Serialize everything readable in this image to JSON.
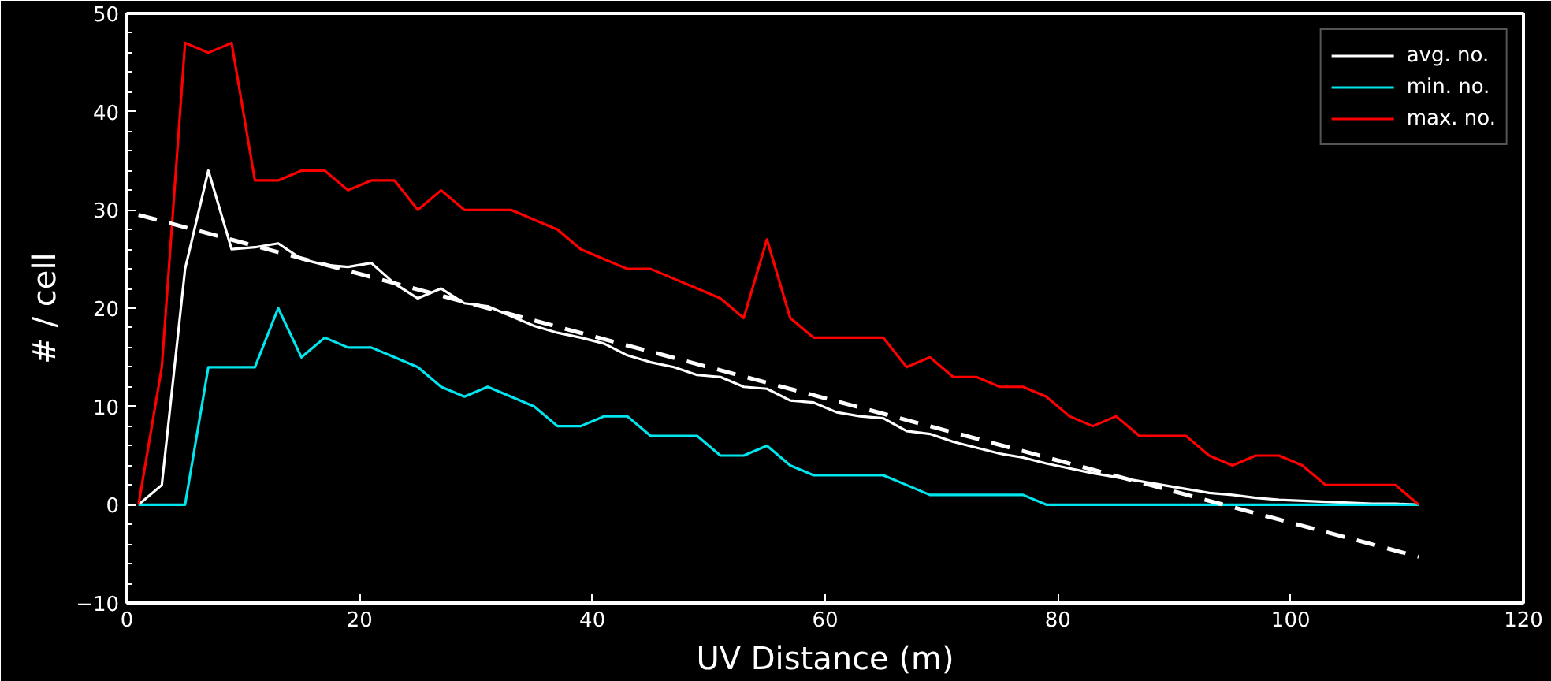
{
  "chart_data": {
    "type": "line",
    "xlabel": "UV Distance (m)",
    "ylabel": "# / cell",
    "x": [
      1,
      3,
      5,
      7,
      9,
      11,
      13,
      15,
      17,
      19,
      21,
      23,
      25,
      27,
      29,
      31,
      33,
      35,
      37,
      39,
      41,
      43,
      45,
      47,
      49,
      51,
      53,
      55,
      57,
      59,
      61,
      63,
      65,
      67,
      69,
      71,
      73,
      75,
      77,
      79,
      81,
      83,
      85,
      87,
      89,
      91,
      93,
      95,
      97,
      99,
      101,
      103,
      105,
      107,
      109,
      111
    ],
    "series": [
      {
        "name": "avg. no.",
        "color": "#ffffff",
        "values": [
          0,
          2,
          24,
          34,
          26,
          26.2,
          26.6,
          25,
          24.4,
          24.2,
          24.6,
          22.5,
          21,
          22,
          20.5,
          20.2,
          19.2,
          18.2,
          17.5,
          17,
          16.4,
          15.2,
          14.5,
          14,
          13.2,
          13,
          12,
          11.8,
          10.6,
          10.4,
          9.4,
          9,
          8.8,
          7.5,
          7.2,
          6.4,
          5.8,
          5.2,
          4.8,
          4.2,
          3.7,
          3.2,
          2.8,
          2.4,
          2.0,
          1.6,
          1.2,
          1.0,
          0.7,
          0.5,
          0.4,
          0.3,
          0.2,
          0.1,
          0.1,
          0
        ]
      },
      {
        "name": "min. no.",
        "color": "#00e5ee",
        "values": [
          0,
          0,
          0,
          14,
          14,
          14,
          20,
          15,
          17,
          16,
          16,
          15,
          14,
          12,
          11,
          12,
          11,
          10,
          8,
          8,
          9,
          9,
          7,
          7,
          7,
          5,
          5,
          6,
          4,
          3,
          3,
          3,
          3,
          2,
          1,
          1,
          1,
          1,
          1,
          0,
          0,
          0,
          0,
          0,
          0,
          0,
          0,
          0,
          0,
          0,
          0,
          0,
          0,
          0,
          0,
          0
        ]
      },
      {
        "name": "max. no.",
        "color": "#ff0000",
        "values": [
          0,
          14,
          47,
          46,
          47,
          33,
          33,
          34,
          34,
          32,
          33,
          33,
          30,
          32,
          30,
          30,
          30,
          29,
          28,
          26,
          25,
          24,
          24,
          23,
          22,
          21,
          19,
          27,
          19,
          17,
          17,
          17,
          17,
          14,
          15,
          13,
          13,
          12,
          12,
          11,
          9,
          8,
          9,
          7,
          7,
          7,
          5,
          4,
          5,
          5,
          4,
          2,
          2,
          2,
          2,
          0
        ]
      },
      {
        "color": "#ffffff",
        "line_style": "dashed",
        "x": [
          1,
          111
        ],
        "values": [
          29.5,
          -5.3
        ]
      }
    ],
    "xlim": [
      0,
      120
    ],
    "ylim": [
      -10,
      50
    ],
    "xticks": [
      0,
      20,
      40,
      60,
      80,
      100,
      120
    ],
    "yticks": [
      -10,
      0,
      10,
      20,
      30,
      40,
      50
    ],
    "grid": false,
    "legend": "top right",
    "marker": "none",
    "line_style": "solid"
  }
}
